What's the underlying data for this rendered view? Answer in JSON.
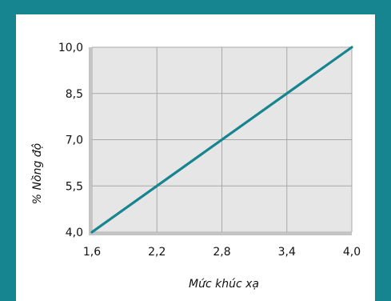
{
  "chart_data": {
    "type": "line",
    "title": "",
    "xlabel": "Mức khúc xạ",
    "ylabel": "% Nồng độ",
    "x": [
      1.6,
      4.0
    ],
    "series": [
      {
        "values": [
          4.0,
          10.0
        ],
        "color": "#16858f"
      }
    ],
    "xlim": [
      1.6,
      4.0
    ],
    "ylim": [
      4.0,
      10.0
    ],
    "xticks": [
      1.6,
      2.2,
      2.8,
      3.4,
      4.0
    ],
    "xtick_labels": [
      "1,6",
      "2,2",
      "2,8",
      "3,4",
      "4,0"
    ],
    "yticks": [
      4.0,
      5.5,
      7.0,
      8.5,
      10.0
    ],
    "ytick_labels": [
      "4,0",
      "5,5",
      "7,0",
      "8,5",
      "10,0"
    ],
    "grid": true,
    "colors": {
      "frame": "#16858f",
      "plot_background": "#e6e6e6",
      "grid": "#a8a8a8",
      "axis": "#c4c4c4"
    }
  }
}
